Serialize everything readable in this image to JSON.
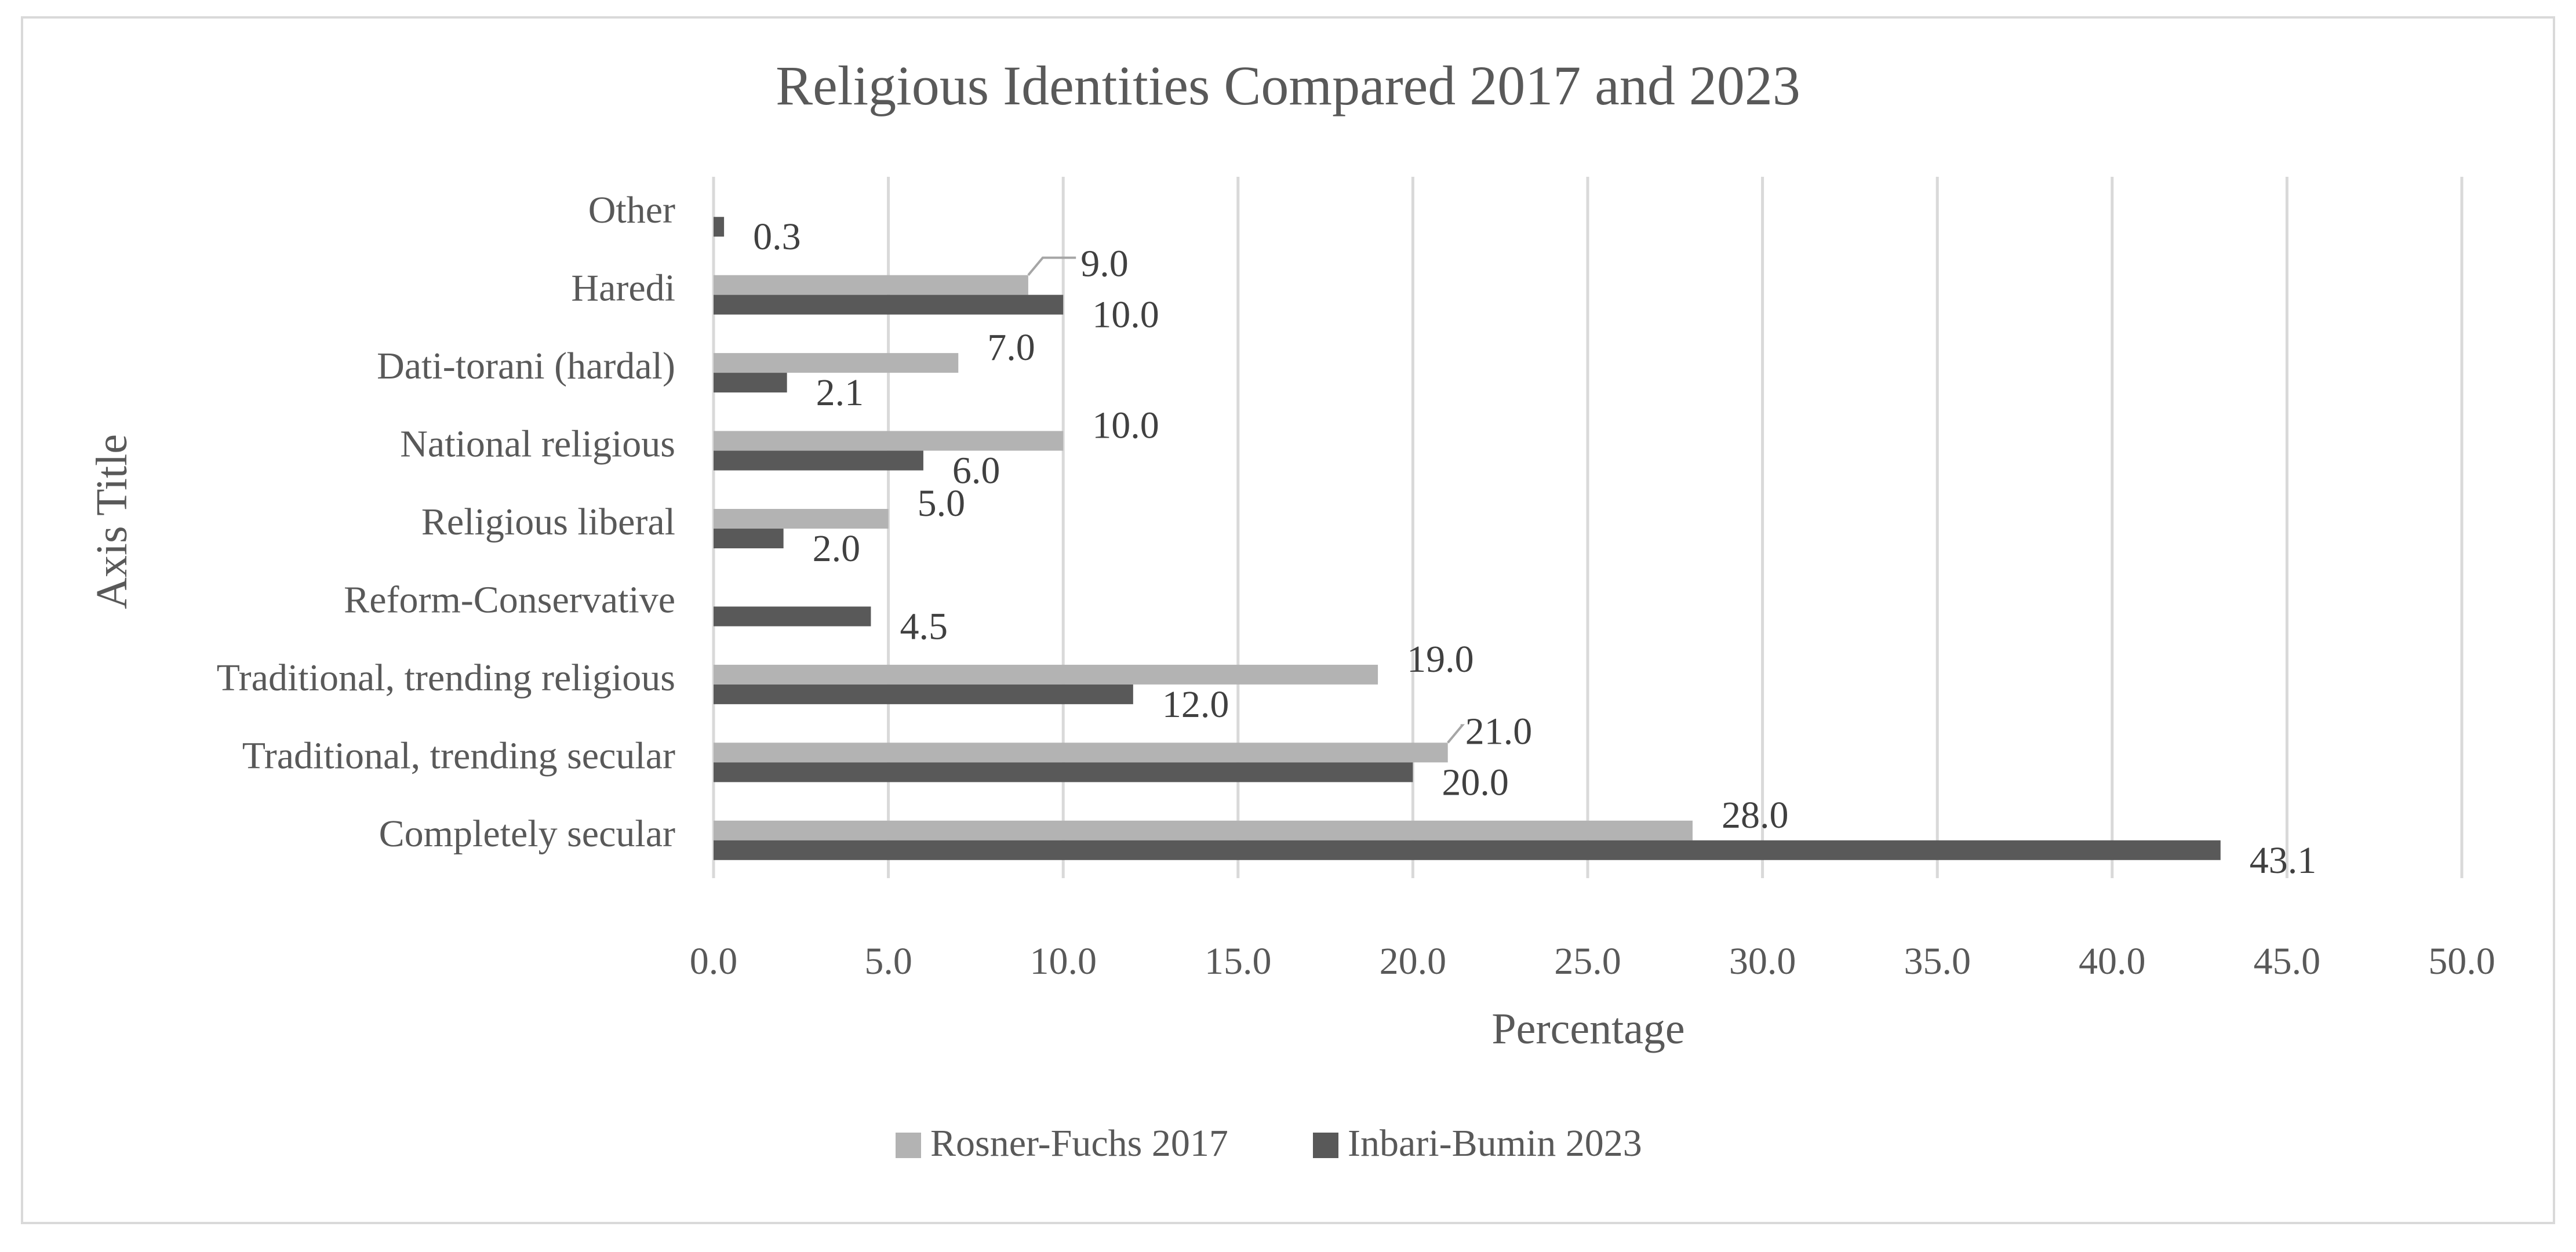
{
  "chart_data": {
    "type": "bar",
    "orientation": "horizontal",
    "title": "Religious Identities Compared 2017 and 2023",
    "xlabel": "Percentage",
    "ylabel": "Axis Title",
    "categories": [
      "Completely secular",
      "Traditional, trending secular",
      "Traditional, trending religious",
      "Reform-Conservative",
      "Religious liberal",
      "National religious",
      "Dati-torani (hardal)",
      "Haredi",
      "Other"
    ],
    "series": [
      {
        "name": "Rosner-Fuchs 2017",
        "color": "#b3b3b3",
        "values": [
          28.0,
          21.0,
          19.0,
          null,
          5.0,
          10.0,
          7.0,
          9.0,
          null
        ]
      },
      {
        "name": "Inbari-Bumin 2023",
        "color": "#595959",
        "values": [
          43.1,
          20.0,
          12.0,
          4.5,
          2.0,
          6.0,
          2.1,
          10.0,
          0.3
        ]
      }
    ],
    "xlim": [
      0,
      50
    ],
    "xticks": [
      "0.0",
      "5.0",
      "10.0",
      "15.0",
      "20.0",
      "25.0",
      "30.0",
      "35.0",
      "40.0",
      "45.0",
      "50.0"
    ],
    "value_format_decimals": 1,
    "grid": true,
    "legend_position": "bottom"
  }
}
